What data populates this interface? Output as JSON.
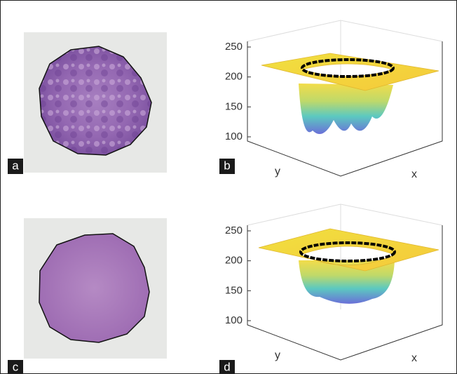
{
  "panels": [
    {
      "label": "a"
    },
    {
      "label": "b",
      "zticks": [
        250,
        200,
        150,
        100
      ],
      "xlabel": "x",
      "ylabel": "y"
    },
    {
      "label": "c"
    },
    {
      "label": "d",
      "zticks": [
        250,
        200,
        150,
        100
      ],
      "xlabel": "x",
      "ylabel": "y"
    }
  ]
}
